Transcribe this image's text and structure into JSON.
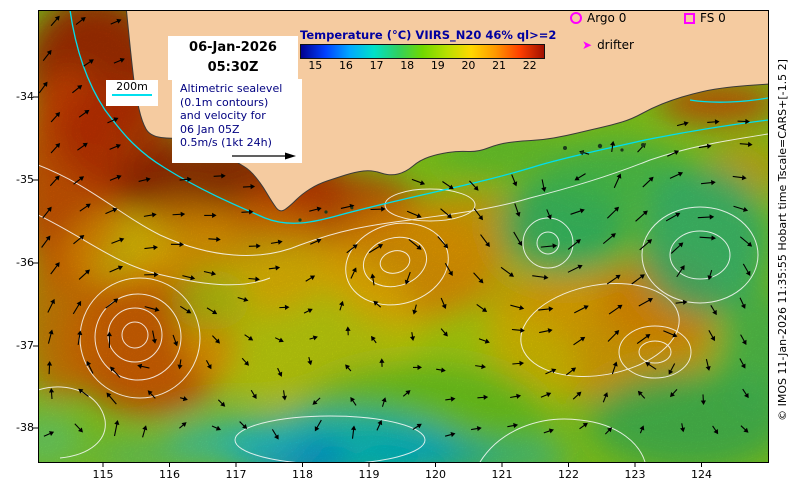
{
  "overlays": {
    "date_line1": "06-Jan-2026",
    "date_line2": "05:30Z",
    "depth_label": "200m",
    "info_lines": [
      "Altimetric sealevel",
      "(0.1m contours)",
      "and velocity for",
      "06 Jan 05Z",
      "0.5m/s (1kt 24h)"
    ],
    "colorbar": {
      "title": "Temperature (°C) VIIRS_N20 46% ql>=2",
      "ticks": [
        "15",
        "16",
        "17",
        "18",
        "19",
        "20",
        "21",
        "22"
      ],
      "gradient": [
        "#000090",
        "#0040ff",
        "#00a8ff",
        "#00e0c8",
        "#30d060",
        "#70d800",
        "#b8e000",
        "#ffd800",
        "#ff9800",
        "#ff4000",
        "#a01000"
      ]
    },
    "legend": {
      "argo_label": "Argo 0",
      "fs_label": "FS 0",
      "drifter_label": "drifter",
      "marker_color": "#ff00ff"
    },
    "credit": "© IMOS 11-Jan-2026 11:35:55 Hobart time Tscale=CARS+[-1.5 2]"
  },
  "axes": {
    "x_ticks": [
      "115",
      "116",
      "117",
      "118",
      "119",
      "120",
      "121",
      "122",
      "123",
      "124"
    ],
    "y_ticks": [
      "-34",
      "-35",
      "-36",
      "-37",
      "-38"
    ]
  },
  "colors": {
    "land": "#f5cba0",
    "ocean_base": "#8ad41c",
    "bathymetry_line": "#00dfee",
    "ssh_contour": "#fafafa",
    "velocity_arrows": "#000000",
    "accent_text": "#0000a0",
    "marker_magenta": "#ff00ff"
  }
}
